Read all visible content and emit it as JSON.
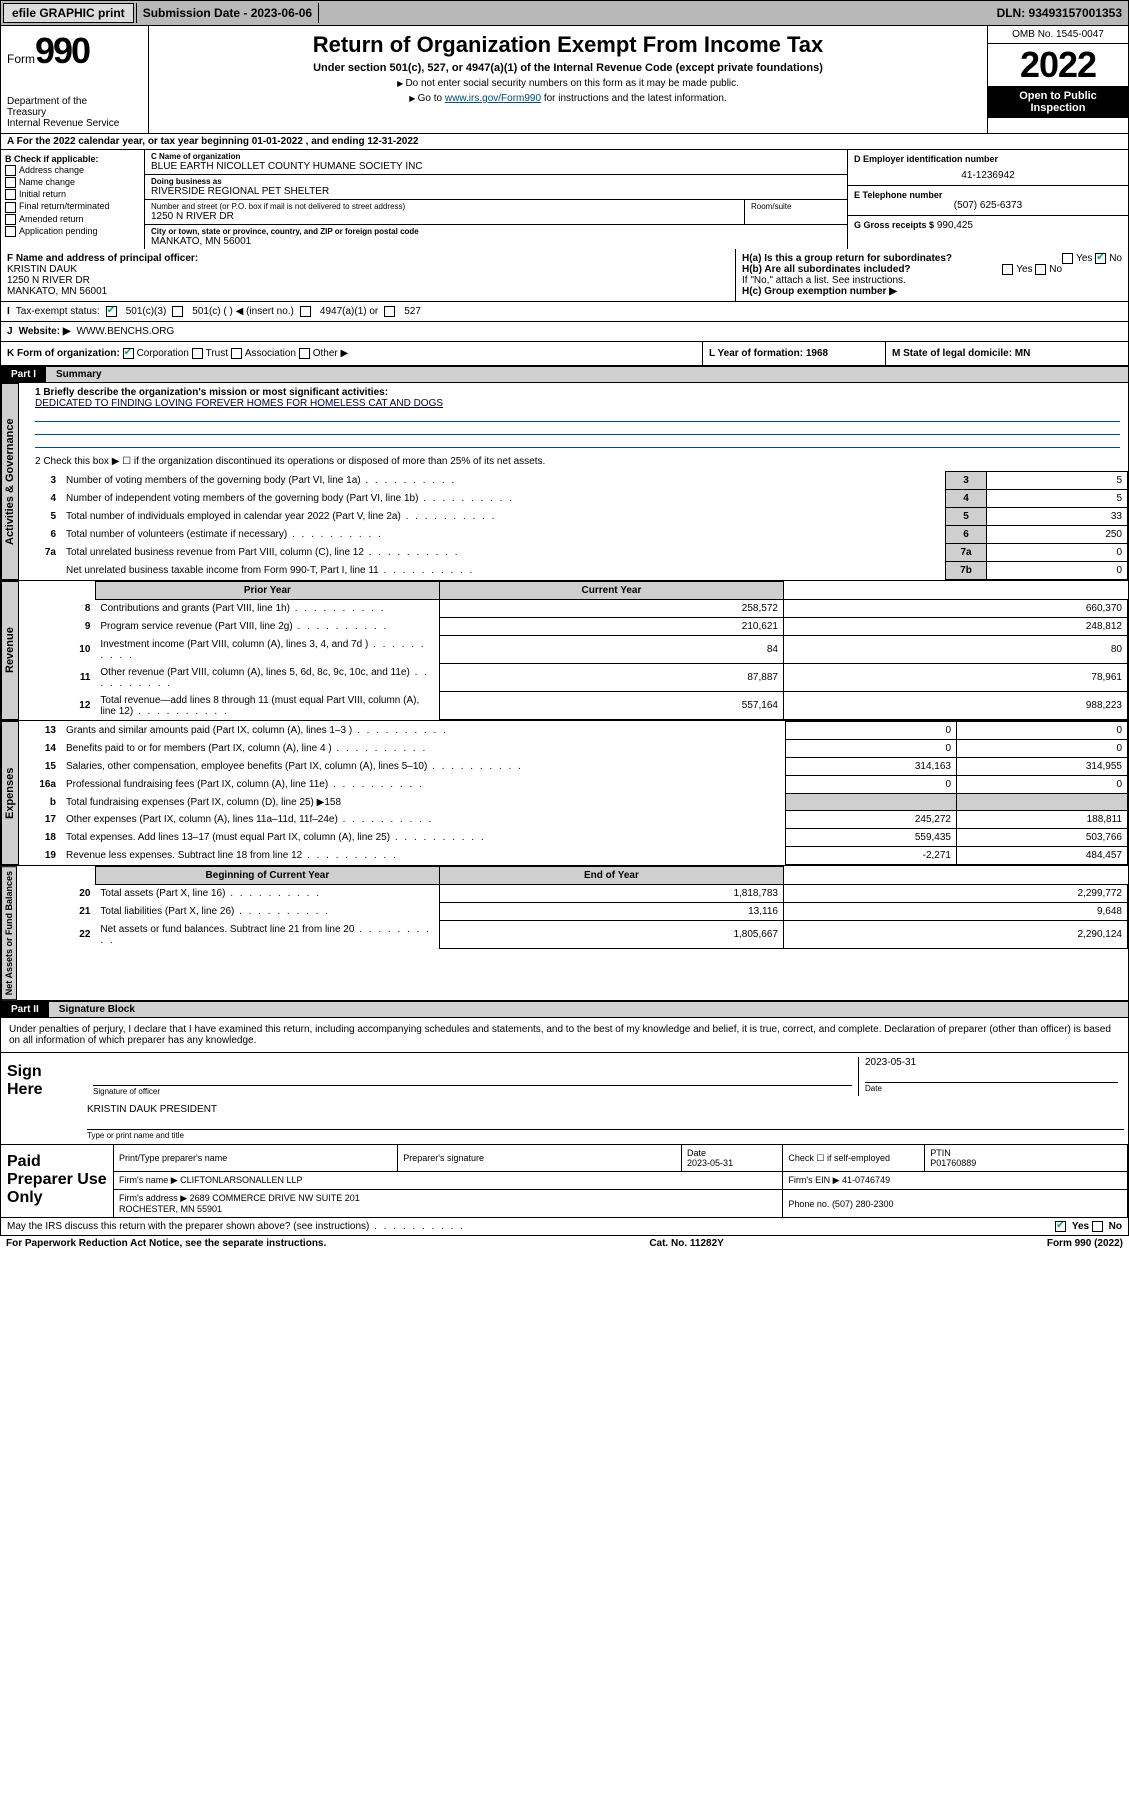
{
  "topbar": {
    "efile": "efile GRAPHIC print",
    "submission_label": "Submission Date - 2023-06-06",
    "dln": "DLN: 93493157001353"
  },
  "header": {
    "form_prefix": "Form",
    "form_number": "990",
    "dept": "Department of the Treasury\nInternal Revenue Service",
    "title": "Return of Organization Exempt From Income Tax",
    "sub1": "Under section 501(c), 527, or 4947(a)(1) of the Internal Revenue Code (except private foundations)",
    "sub2": "Do not enter social security numbers on this form as it may be made public.",
    "sub3_pre": "Go to ",
    "sub3_link": "www.irs.gov/Form990",
    "sub3_post": " for instructions and the latest information.",
    "omb": "OMB No. 1545-0047",
    "year": "2022",
    "inspect": "Open to Public Inspection"
  },
  "row_a": "For the 2022 calendar year, or tax year beginning 01-01-2022   , and ending 12-31-2022",
  "section_b": {
    "label": "B Check if applicable:",
    "opts": [
      "Address change",
      "Name change",
      "Initial return",
      "Final return/terminated",
      "Amended return",
      "Application pending"
    ]
  },
  "section_c": {
    "name_lbl": "C Name of organization",
    "name": "BLUE EARTH NICOLLET COUNTY HUMANE SOCIETY INC",
    "dba_lbl": "Doing business as",
    "dba": "RIVERSIDE REGIONAL PET SHELTER",
    "street_lbl": "Number and street (or P.O. box if mail is not delivered to street address)",
    "street": "1250 N RIVER DR",
    "room_lbl": "Room/suite",
    "city_lbl": "City or town, state or province, country, and ZIP or foreign postal code",
    "city": "MANKATO, MN  56001"
  },
  "section_d": {
    "lbl": "D Employer identification number",
    "val": "41-1236942"
  },
  "section_e": {
    "lbl": "E Telephone number",
    "val": "(507) 625-6373"
  },
  "section_g": {
    "lbl": "G Gross receipts $",
    "val": "990,425"
  },
  "section_f": {
    "lbl": "F Name and address of principal officer:",
    "name": "KRISTIN DAUK",
    "addr1": "1250 N RIVER DR",
    "addr2": "MANKATO, MN  56001"
  },
  "section_h": {
    "ha": "H(a)  Is this a group return for subordinates?",
    "ha_yes": "Yes",
    "ha_no": "No",
    "hb": "H(b)  Are all subordinates included?",
    "hb_yes": "Yes",
    "hb_no": "No",
    "hb_note": "If \"No,\" attach a list. See instructions.",
    "hc": "H(c)  Group exemption number ▶"
  },
  "row_i": {
    "lbl": "Tax-exempt status:",
    "o1": "501(c)(3)",
    "o2": "501(c) (  ) ◀ (insert no.)",
    "o3": "4947(a)(1) or",
    "o4": "527"
  },
  "row_j": {
    "lbl": "Website: ▶",
    "val": "WWW.BENCHS.ORG"
  },
  "row_k": {
    "lbl": "K Form of organization:",
    "opts": [
      "Corporation",
      "Trust",
      "Association",
      "Other ▶"
    ]
  },
  "row_l": "L Year of formation: 1968",
  "row_m": "M State of legal domicile: MN",
  "part1": {
    "pn": "Part I",
    "pt": "Summary"
  },
  "tabs": {
    "gov": "Activities & Governance",
    "rev": "Revenue",
    "exp": "Expenses",
    "net": "Net Assets or\nFund Balances"
  },
  "q1": {
    "lead": "1  Briefly describe the organization's mission or most significant activities:",
    "text": "DEDICATED TO FINDING LOVING FOREVER HOMES FOR HOMELESS CAT AND DOGS"
  },
  "q2": "2  Check this box ▶ ☐  if the organization discontinued its operations or disposed of more than 25% of its net assets.",
  "gov_rows": [
    {
      "n": "3",
      "t": "Number of voting members of the governing body (Part VI, line 1a)",
      "c": "3",
      "v": "5"
    },
    {
      "n": "4",
      "t": "Number of independent voting members of the governing body (Part VI, line 1b)",
      "c": "4",
      "v": "5"
    },
    {
      "n": "5",
      "t": "Total number of individuals employed in calendar year 2022 (Part V, line 2a)",
      "c": "5",
      "v": "33"
    },
    {
      "n": "6",
      "t": "Total number of volunteers (estimate if necessary)",
      "c": "6",
      "v": "250"
    },
    {
      "n": "7a",
      "t": "Total unrelated business revenue from Part VIII, column (C), line 12",
      "c": "7a",
      "v": "0"
    },
    {
      "n": "",
      "t": "Net unrelated business taxable income from Form 990-T, Part I, line 11",
      "c": "7b",
      "v": "0"
    }
  ],
  "yr_hdr": {
    "prior": "Prior Year",
    "curr": "Current Year"
  },
  "rev_rows": [
    {
      "n": "8",
      "t": "Contributions and grants (Part VIII, line 1h)",
      "p": "258,572",
      "c": "660,370"
    },
    {
      "n": "9",
      "t": "Program service revenue (Part VIII, line 2g)",
      "p": "210,621",
      "c": "248,812"
    },
    {
      "n": "10",
      "t": "Investment income (Part VIII, column (A), lines 3, 4, and 7d )",
      "p": "84",
      "c": "80"
    },
    {
      "n": "11",
      "t": "Other revenue (Part VIII, column (A), lines 5, 6d, 8c, 9c, 10c, and 11e)",
      "p": "87,887",
      "c": "78,961"
    },
    {
      "n": "12",
      "t": "Total revenue—add lines 8 through 11 (must equal Part VIII, column (A), line 12)",
      "p": "557,164",
      "c": "988,223"
    }
  ],
  "exp_rows": [
    {
      "n": "13",
      "t": "Grants and similar amounts paid (Part IX, column (A), lines 1–3 )",
      "p": "0",
      "c": "0"
    },
    {
      "n": "14",
      "t": "Benefits paid to or for members (Part IX, column (A), line 4 )",
      "p": "0",
      "c": "0"
    },
    {
      "n": "15",
      "t": "Salaries, other compensation, employee benefits (Part IX, column (A), lines 5–10)",
      "p": "314,163",
      "c": "314,955"
    },
    {
      "n": "16a",
      "t": "Professional fundraising fees (Part IX, column (A), line 11e)",
      "p": "0",
      "c": "0"
    }
  ],
  "exp_b": {
    "n": "b",
    "t": "Total fundraising expenses (Part IX, column (D), line 25) ▶158"
  },
  "exp_rows2": [
    {
      "n": "17",
      "t": "Other expenses (Part IX, column (A), lines 11a–11d, 11f–24e)",
      "p": "245,272",
      "c": "188,811"
    },
    {
      "n": "18",
      "t": "Total expenses. Add lines 13–17 (must equal Part IX, column (A), line 25)",
      "p": "559,435",
      "c": "503,766"
    },
    {
      "n": "19",
      "t": "Revenue less expenses. Subtract line 18 from line 12",
      "p": "-2,271",
      "c": "484,457"
    }
  ],
  "net_hdr": {
    "b": "Beginning of Current Year",
    "e": "End of Year"
  },
  "net_rows": [
    {
      "n": "20",
      "t": "Total assets (Part X, line 16)",
      "p": "1,818,783",
      "c": "2,299,772"
    },
    {
      "n": "21",
      "t": "Total liabilities (Part X, line 26)",
      "p": "13,116",
      "c": "9,648"
    },
    {
      "n": "22",
      "t": "Net assets or fund balances. Subtract line 21 from line 20",
      "p": "1,805,667",
      "c": "2,290,124"
    }
  ],
  "part2": {
    "pn": "Part II",
    "pt": "Signature Block"
  },
  "perjury": "Under penalties of perjury, I declare that I have examined this return, including accompanying schedules and statements, and to the best of my knowledge and belief, it is true, correct, and complete. Declaration of preparer (other than officer) is based on all information of which preparer has any knowledge.",
  "sign": {
    "lab": "Sign Here",
    "sig_lbl": "Signature of officer",
    "date": "2023-05-31",
    "date_lbl": "Date",
    "name": "KRISTIN DAUK PRESIDENT",
    "name_lbl": "Type or print name and title"
  },
  "paid": {
    "lab": "Paid Preparer Use Only",
    "h1": "Print/Type preparer's name",
    "h2": "Preparer's signature",
    "h3": "Date",
    "h3v": "2023-05-31",
    "h4": "Check ☐ if self-employed",
    "h5": "PTIN",
    "h5v": "P01760889",
    "firm_lbl": "Firm's name   ▶",
    "firm": "CLIFTONLARSONALLEN LLP",
    "ein_lbl": "Firm's EIN ▶",
    "ein": "41-0746749",
    "addr_lbl": "Firm's address ▶",
    "addr": "2689 COMMERCE DRIVE NW SUITE 201\nROCHESTER, MN  55901",
    "phone_lbl": "Phone no.",
    "phone": "(507) 280-2300"
  },
  "discuss": {
    "t": "May the IRS discuss this return with the preparer shown above? (see instructions)",
    "y": "Yes",
    "n": "No"
  },
  "footer": {
    "l": "For Paperwork Reduction Act Notice, see the separate instructions.",
    "m": "Cat. No. 11282Y",
    "r": "Form 990 (2022)"
  }
}
